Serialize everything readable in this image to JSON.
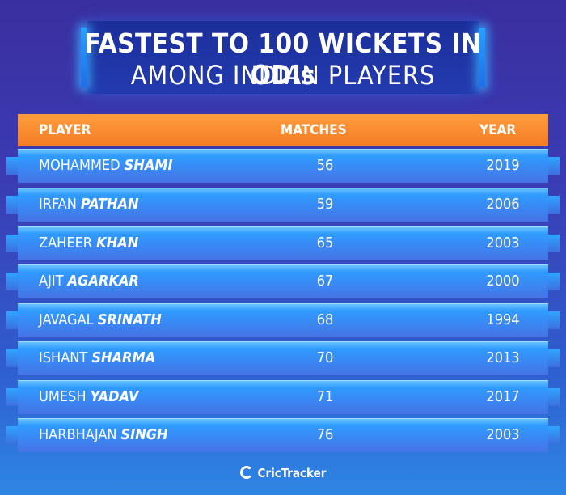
{
  "title": {
    "line1": "FASTEST TO 100 WICKETS IN ODIs",
    "line2": "AMONG INDIAN PLAYERS"
  },
  "table": {
    "headers": {
      "player": "PLAYER",
      "matches": "MATCHES",
      "year": "YEAR"
    },
    "rows": [
      {
        "first": "MOHAMMED",
        "last": "SHAMI",
        "matches": "56",
        "year": "2019"
      },
      {
        "first": "IRFAN",
        "last": "PATHAN",
        "matches": "59",
        "year": "2006"
      },
      {
        "first": "ZAHEER",
        "last": "KHAN",
        "matches": "65",
        "year": "2003"
      },
      {
        "first": "AJIT",
        "last": "AGARKAR",
        "matches": "67",
        "year": "2000"
      },
      {
        "first": "JAVAGAL",
        "last": "SRINATH",
        "matches": "68",
        "year": "1994"
      },
      {
        "first": "ISHANT",
        "last": "SHARMA",
        "matches": "70",
        "year": "2013"
      },
      {
        "first": "UMESH",
        "last": "YADAV",
        "matches": "71",
        "year": "2017"
      },
      {
        "first": "HARBHAJAN",
        "last": "SINGH",
        "matches": "76",
        "year": "2003"
      }
    ]
  },
  "footer": {
    "brand": "CricTracker",
    "logo_icon": "crictracker-logo-icon"
  }
}
